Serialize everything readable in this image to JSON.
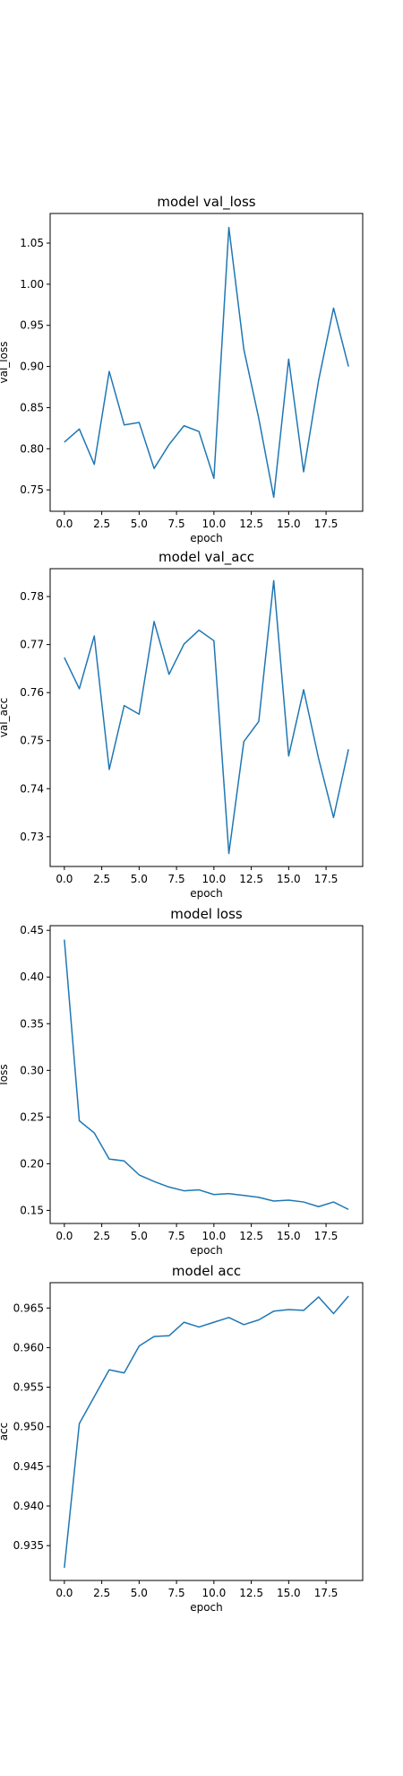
{
  "series_color": "#1f77b4",
  "chart_data": [
    {
      "type": "line",
      "title": "model val_loss",
      "xlabel": "epoch",
      "ylabel": "val_loss",
      "x": [
        0,
        1,
        2,
        3,
        4,
        5,
        6,
        7,
        8,
        9,
        10,
        11,
        12,
        13,
        14,
        15,
        16,
        17,
        18,
        19
      ],
      "xlim": [
        -0.95,
        19.95
      ],
      "ylim": [
        0.724,
        1.086
      ],
      "xticks": [
        0.0,
        2.5,
        5.0,
        7.5,
        10.0,
        12.5,
        15.0,
        17.5
      ],
      "xtick_labels": [
        "0.0",
        "2.5",
        "5.0",
        "7.5",
        "10.0",
        "12.5",
        "15.0",
        "17.5"
      ],
      "yticks": [
        0.75,
        0.8,
        0.85,
        0.9,
        0.95,
        1.0,
        1.05
      ],
      "ytick_labels": [
        "0.75",
        "0.80",
        "0.85",
        "0.90",
        "0.95",
        "1.00",
        "1.05"
      ],
      "series": [
        {
          "values": [
            0.808,
            0.824,
            0.781,
            0.894,
            0.829,
            0.832,
            0.776,
            0.805,
            0.828,
            0.821,
            0.764,
            1.069,
            0.921,
            0.837,
            0.741,
            0.909,
            0.772,
            0.883,
            0.971,
            0.9
          ]
        }
      ]
    },
    {
      "type": "line",
      "title": "model val_acc",
      "xlabel": "epoch",
      "ylabel": "val_acc",
      "x": [
        0,
        1,
        2,
        3,
        4,
        5,
        6,
        7,
        8,
        9,
        10,
        11,
        12,
        13,
        14,
        15,
        16,
        17,
        18,
        19
      ],
      "xlim": [
        -0.95,
        19.95
      ],
      "ylim": [
        0.7238,
        0.7858
      ],
      "xticks": [
        0.0,
        2.5,
        5.0,
        7.5,
        10.0,
        12.5,
        15.0,
        17.5
      ],
      "xtick_labels": [
        "0.0",
        "2.5",
        "5.0",
        "7.5",
        "10.0",
        "12.5",
        "15.0",
        "17.5"
      ],
      "yticks": [
        0.73,
        0.74,
        0.75,
        0.76,
        0.77,
        0.78
      ],
      "ytick_labels": [
        "0.73",
        "0.74",
        "0.75",
        "0.76",
        "0.77",
        "0.78"
      ],
      "series": [
        {
          "values": [
            0.7673,
            0.7608,
            0.7718,
            0.744,
            0.7573,
            0.7555,
            0.7748,
            0.7638,
            0.7701,
            0.773,
            0.7708,
            0.7265,
            0.7498,
            0.754,
            0.7833,
            0.7468,
            0.7606,
            0.7463,
            0.734,
            0.7482
          ]
        }
      ]
    },
    {
      "type": "line",
      "title": "model loss",
      "xlabel": "epoch",
      "ylabel": "loss",
      "x": [
        0,
        1,
        2,
        3,
        4,
        5,
        6,
        7,
        8,
        9,
        10,
        11,
        12,
        13,
        14,
        15,
        16,
        17,
        18,
        19
      ],
      "xlim": [
        -0.95,
        19.95
      ],
      "ylim": [
        0.136,
        0.455
      ],
      "xticks": [
        0.0,
        2.5,
        5.0,
        7.5,
        10.0,
        12.5,
        15.0,
        17.5
      ],
      "xtick_labels": [
        "0.0",
        "2.5",
        "5.0",
        "7.5",
        "10.0",
        "12.5",
        "15.0",
        "17.5"
      ],
      "yticks": [
        0.15,
        0.2,
        0.25,
        0.3,
        0.35,
        0.4,
        0.45
      ],
      "ytick_labels": [
        "0.15",
        "0.20",
        "0.25",
        "0.30",
        "0.35",
        "0.40",
        "0.45"
      ],
      "series": [
        {
          "values": [
            0.44,
            0.246,
            0.233,
            0.205,
            0.203,
            0.188,
            0.181,
            0.175,
            0.171,
            0.172,
            0.167,
            0.168,
            0.166,
            0.164,
            0.16,
            0.161,
            0.159,
            0.154,
            0.159,
            0.151
          ]
        }
      ]
    },
    {
      "type": "line",
      "title": "model acc",
      "xlabel": "epoch",
      "ylabel": "acc",
      "x": [
        0,
        1,
        2,
        3,
        4,
        5,
        6,
        7,
        8,
        9,
        10,
        11,
        12,
        13,
        14,
        15,
        16,
        17,
        18,
        19
      ],
      "xlim": [
        -0.95,
        19.95
      ],
      "ylim": [
        0.9306,
        0.9682
      ],
      "xticks": [
        0.0,
        2.5,
        5.0,
        7.5,
        10.0,
        12.5,
        15.0,
        17.5
      ],
      "xtick_labels": [
        "0.0",
        "2.5",
        "5.0",
        "7.5",
        "10.0",
        "12.5",
        "15.0",
        "17.5"
      ],
      "yticks": [
        0.935,
        0.94,
        0.945,
        0.95,
        0.955,
        0.96,
        0.965
      ],
      "ytick_labels": [
        "0.935",
        "0.940",
        "0.945",
        "0.950",
        "0.955",
        "0.960",
        "0.965"
      ],
      "series": [
        {
          "values": [
            0.9322,
            0.9504,
            0.9538,
            0.9572,
            0.9568,
            0.9602,
            0.9614,
            0.9615,
            0.9632,
            0.9626,
            0.9632,
            0.9638,
            0.9629,
            0.9635,
            0.9646,
            0.9648,
            0.9647,
            0.9664,
            0.9643,
            0.9665
          ]
        }
      ]
    }
  ]
}
